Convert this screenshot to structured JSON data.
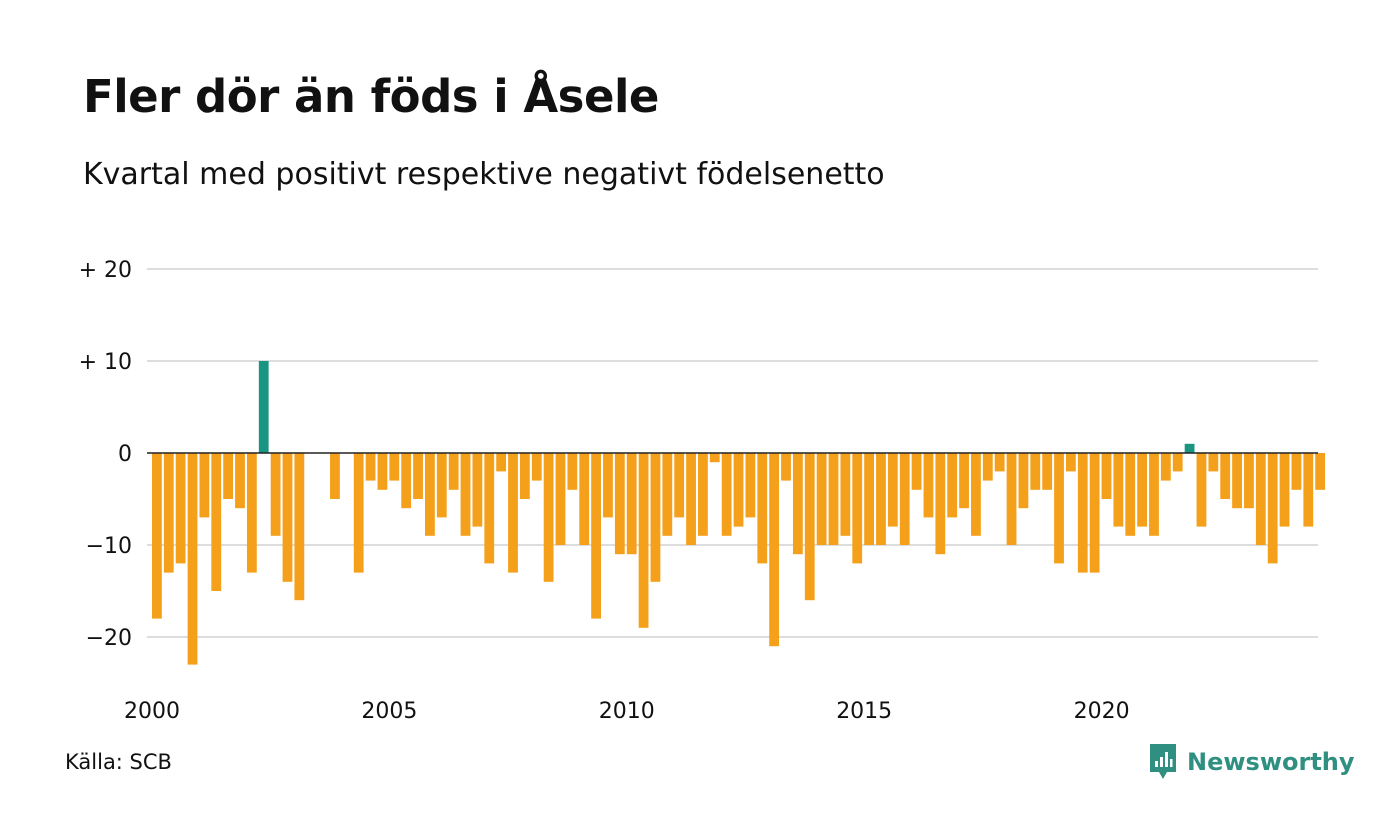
{
  "title": "Fler dör än föds i Åsele",
  "subtitle": "Kvartal med positivt respektive negativt födelsenetto",
  "source": "Källa: SCB",
  "brand": "Newsworthy",
  "colors": {
    "positive": "#1a9582",
    "negative": "#f5a01a",
    "grid": "#dddddd",
    "zero_line": "#222222",
    "brand": "#2f8f80"
  },
  "chart_data": {
    "type": "bar",
    "x_start_year": 2000,
    "periods_per_year": 4,
    "x_tick_labels": [
      "2000",
      "2005",
      "2010",
      "2015",
      "2020"
    ],
    "y_ticks": [
      20,
      10,
      0,
      -10,
      -20
    ],
    "y_tick_labels": [
      "+ 20",
      "+ 10",
      "0",
      "−10",
      "−20"
    ],
    "ylim": [
      -25,
      21
    ],
    "grid": true,
    "values": [
      -18,
      -13,
      -12,
      -23,
      -7,
      -15,
      -5,
      -6,
      -13,
      10,
      -9,
      -14,
      -16,
      0,
      0,
      -5,
      0,
      -13,
      -3,
      -4,
      -3,
      -6,
      -5,
      -9,
      -7,
      -4,
      -9,
      -8,
      -12,
      -2,
      -13,
      -5,
      -3,
      -14,
      -10,
      -4,
      -10,
      -18,
      -7,
      -11,
      -11,
      -19,
      -14,
      -9,
      -7,
      -10,
      -9,
      -1,
      -9,
      -8,
      -7,
      -12,
      -21,
      -3,
      -11,
      -16,
      -10,
      -10,
      -9,
      -12,
      -10,
      -10,
      -8,
      -10,
      -4,
      -7,
      -11,
      -7,
      -6,
      -9,
      -3,
      -2,
      -10,
      -6,
      -4,
      -4,
      -12,
      -2,
      -13,
      -13,
      -5,
      -8,
      -9,
      -8,
      -9,
      -3,
      -2,
      1,
      -8,
      -2,
      -5,
      -6,
      -6,
      -10,
      -12,
      -8,
      -4,
      -8,
      -4
    ]
  }
}
